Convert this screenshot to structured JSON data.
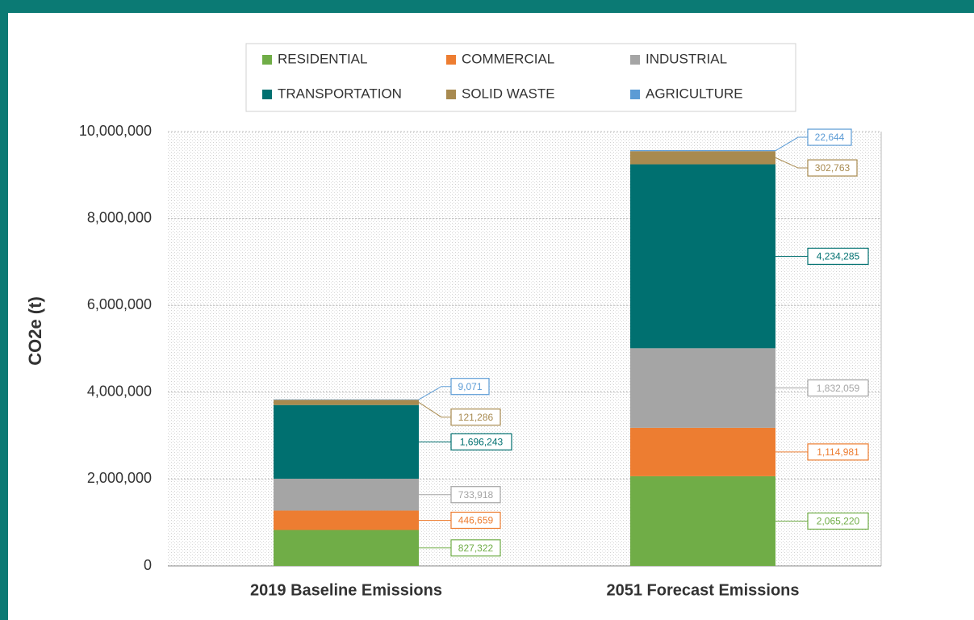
{
  "chart_data": {
    "type": "stacked_bar",
    "y_label": "CO2e (t)",
    "categories": [
      "2019 Baseline Emissions",
      "2051 Forecast Emissions"
    ],
    "series": [
      {
        "name": "RESIDENTIAL",
        "color": "#70ad47",
        "values": [
          827322,
          2065220
        ],
        "value_labels": [
          "827,322",
          "2,065,220"
        ]
      },
      {
        "name": "COMMERCIAL",
        "color": "#ed7d31",
        "values": [
          446659,
          1114981
        ],
        "value_labels": [
          "446,659",
          "1,114,981"
        ]
      },
      {
        "name": "INDUSTRIAL",
        "color": "#a5a5a5",
        "values": [
          733918,
          1832059
        ],
        "value_labels": [
          "733,918",
          "1,832,059"
        ]
      },
      {
        "name": "TRANSPORTATION",
        "color": "#007070",
        "values": [
          1696243,
          4234285
        ],
        "value_labels": [
          "1,696,243",
          "4,234,285"
        ]
      },
      {
        "name": "SOLID WASTE",
        "color": "#a88a4f",
        "values": [
          121286,
          302763
        ],
        "value_labels": [
          "121,286",
          "302,763"
        ]
      },
      {
        "name": "AGRICULTURE",
        "color": "#5b9bd5",
        "values": [
          9071,
          22644
        ],
        "value_labels": [
          "9,071",
          "22,644"
        ]
      }
    ],
    "ylim": [
      0,
      10000000
    ],
    "yticks": [
      0,
      {
        "value": 2000000,
        "label": "2,000,000"
      },
      {
        "value": 4000000,
        "label": "4,000,000"
      },
      {
        "value": 6000000,
        "label": "6,000,000"
      },
      {
        "value": 8000000,
        "label": "8,000,000"
      },
      {
        "value": 10000000,
        "label": "10,000,000"
      }
    ],
    "grid": true,
    "legend": "top"
  }
}
